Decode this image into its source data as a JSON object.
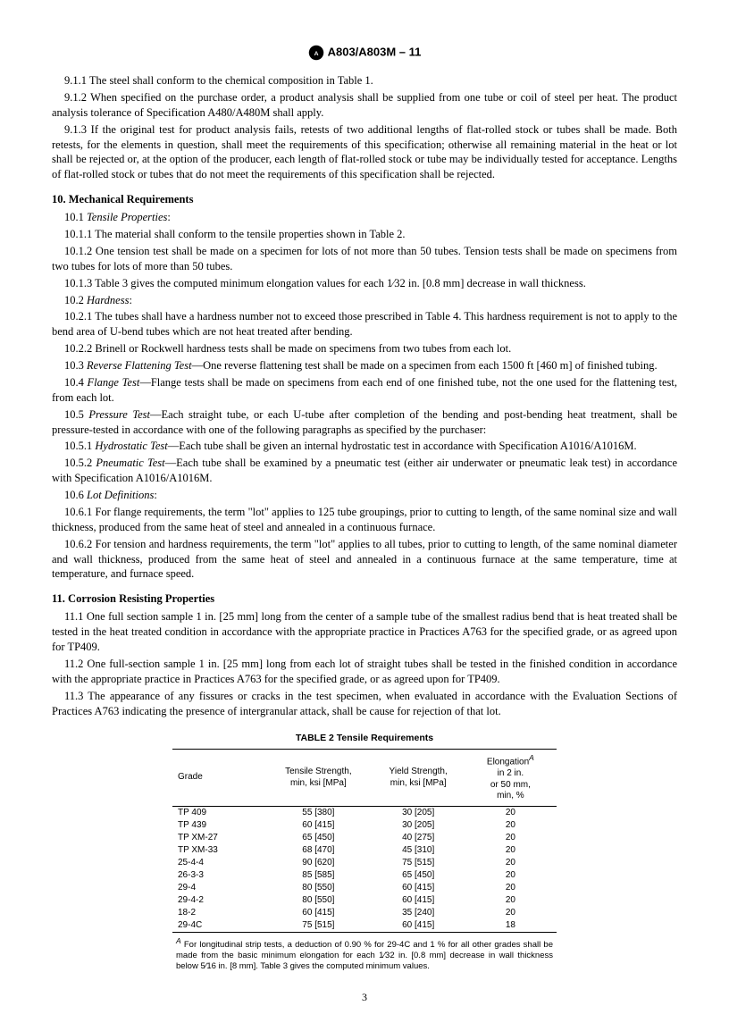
{
  "header": {
    "standard": "A803/A803M – 11"
  },
  "body": {
    "p911": "9.1.1 The steel shall conform to the chemical composition in Table 1.",
    "p912": "9.1.2 When specified on the purchase order, a product analysis shall be supplied from one tube or coil of steel per heat. The product analysis tolerance of Specification A480/A480M shall apply.",
    "p913": "9.1.3 If the original test for product analysis fails, retests of two additional lengths of flat-rolled stock or tubes shall be made. Both retests, for the elements in question, shall meet the requirements of this specification; otherwise all remaining material in the heat or lot shall be rejected or, at the option of the producer, each length of flat-rolled stock or tube may be individually tested for acceptance. Lengths of flat-rolled stock or tubes that do not meet the requirements of this specification shall be rejected.",
    "s10": "10. Mechanical Requirements",
    "s101label": "Tensile Properties",
    "p101": "10.1 ",
    "p1011": "10.1.1 The material shall conform to the tensile properties shown in Table 2.",
    "p1012": "10.1.2 One tension test shall be made on a specimen for lots of not more than 50 tubes. Tension tests shall be made on specimens from two tubes for lots of more than 50 tubes.",
    "p1013": "10.1.3 Table 3 gives the computed minimum elongation values for each 1⁄32 in. [0.8 mm] decrease in wall thickness.",
    "s102label": "Hardness",
    "p102": "10.2 ",
    "p1021": "10.2.1 The tubes shall have a hardness number not to exceed those prescribed in Table 4. This hardness requirement is not to apply to the bend area of U-bend tubes which are not heat treated after bending.",
    "p1022": "10.2.2 Brinell or Rockwell hardness tests shall be made on specimens from two tubes from each lot.",
    "p103label": "Reverse Flattening Test",
    "p103rest": "—One reverse flattening test shall be made on a specimen from each 1500 ft [460 m] of finished tubing.",
    "p103": "10.3 ",
    "p104label": "Flange Test",
    "p104rest": "—Flange tests shall be made on specimens from each end of one finished tube, not the one used for the flattening test, from each lot.",
    "p104": "10.4 ",
    "p105label": "Pressure Test",
    "p105rest": "—Each straight tube, or each U-tube after completion of the bending and post-bending heat treatment, shall be pressure-tested in accordance with one of the following paragraphs as specified by the purchaser:",
    "p105": "10.5 ",
    "p1051label": "Hydrostatic Test",
    "p1051rest": "—Each tube shall be given an internal hydrostatic test in accordance with Specification A1016/A1016M.",
    "p1051": "10.5.1 ",
    "p1052label": "Pneumatic Test",
    "p1052rest": "—Each tube shall be examined by a pneumatic test (either air underwater or pneumatic leak test) in accordance with Specification A1016/A1016M.",
    "p1052": "10.5.2 ",
    "s106label": "Lot Definitions",
    "p106": "10.6 ",
    "p1061": "10.6.1 For flange requirements, the term \"lot\" applies to 125 tube groupings, prior to cutting to length, of the same nominal size and wall thickness, produced from the same heat of steel and annealed in a continuous furnace.",
    "p1062": "10.6.2 For tension and hardness requirements, the term \"lot\" applies to all tubes, prior to cutting to length, of the same nominal diameter and wall thickness, produced from the same heat of steel and annealed in a continuous furnace at the same temperature, time at temperature, and furnace speed.",
    "s11": "11. Corrosion Resisting Properties",
    "p111": "11.1 One full section sample 1 in. [25 mm] long from the center of a sample tube of the smallest radius bend that is heat treated shall be tested in the heat treated condition in accordance with the appropriate practice in Practices A763 for the specified grade, or as agreed upon for TP409.",
    "p112": "11.2 One full-section sample 1 in. [25 mm] long from each lot of straight tubes shall be tested in the finished condition in accordance with the appropriate practice in Practices A763 for the specified grade, or as agreed upon for TP409.",
    "p113": "11.3 The appearance of any fissures or cracks in the test specimen, when evaluated in accordance with the Evaluation Sections of Practices A763 indicating the presence of intergranular attack, shall be cause for rejection of that lot."
  },
  "table2": {
    "title": "TABLE 2  Tensile Requirements",
    "columns": {
      "c1": "Grade",
      "c2": "Tensile Strength,\nmin, ksi [MPa]",
      "c3": "Yield Strength,\nmin, ksi [MPa]",
      "c4a": "Elongation",
      "c4sup": "A",
      "c4b": "in 2 in.\nor 50 mm,\nmin, %"
    },
    "rows": [
      [
        "TP 409",
        "55 [380]",
        "30 [205]",
        "20"
      ],
      [
        "TP 439",
        "60 [415]",
        "30 [205]",
        "20"
      ],
      [
        "TP XM-27",
        "65 [450]",
        "40 [275]",
        "20"
      ],
      [
        "TP XM-33",
        "68 [470]",
        "45 [310]",
        "20"
      ],
      [
        "25-4-4",
        "90 [620]",
        "75 [515]",
        "20"
      ],
      [
        "26-3-3",
        "85 [585]",
        "65 [450]",
        "20"
      ],
      [
        "29-4",
        "80 [550]",
        "60 [415]",
        "20"
      ],
      [
        "29-4-2",
        "80 [550]",
        "60 [415]",
        "20"
      ],
      [
        "18-2",
        "60 [415]",
        "35 [240]",
        "20"
      ],
      [
        "29-4C",
        "75 [515]",
        "60 [415]",
        "18"
      ]
    ],
    "footnote_sup": "A",
    "footnote": " For longitudinal strip tests, a deduction of 0.90 % for 29-4C and 1 % for all other grades shall be made from the basic minimum elongation for each 1⁄32 in. [0.8 mm] decrease in wall thickness below 5⁄16 in. [8 mm]. Table 3 gives the computed minimum values."
  },
  "pageNumber": "3"
}
